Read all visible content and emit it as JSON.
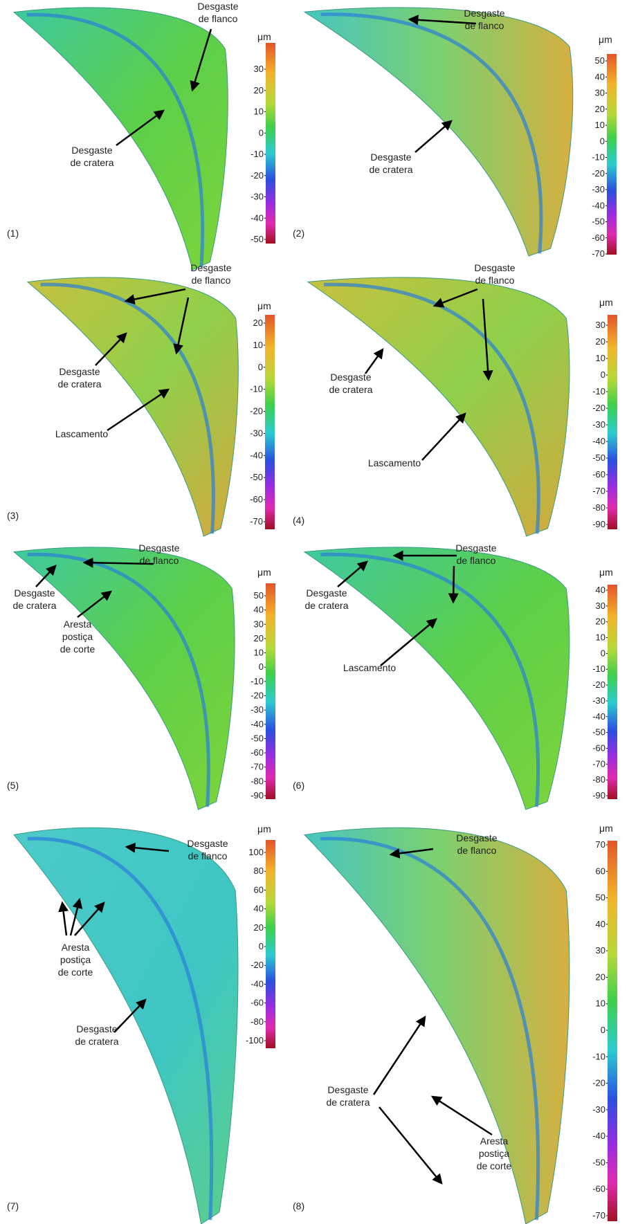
{
  "panels": [
    {
      "label": "(1)",
      "unit": "μm",
      "scale": [
        "30",
        "20",
        "10",
        "0",
        "-10",
        "-20",
        "-30",
        "-40",
        "-50"
      ],
      "annotations": [
        {
          "lines": [
            "Desgaste",
            "de flanco"
          ]
        },
        {
          "lines": [
            "Desgaste",
            "de cratera"
          ]
        }
      ]
    },
    {
      "label": "(2)",
      "unit": "μm",
      "scale": [
        "50",
        "40",
        "30",
        "20",
        "10",
        "0",
        "-10",
        "-20",
        "-30",
        "-40",
        "-50",
        "-60",
        "-70"
      ],
      "annotations": [
        {
          "lines": [
            "Desgaste",
            "de flanco"
          ]
        },
        {
          "lines": [
            "Desgaste",
            "de cratera"
          ]
        }
      ]
    },
    {
      "label": "(3)",
      "unit": "μm",
      "scale": [
        "20",
        "10",
        "0",
        "-10",
        "-20",
        "-30",
        "-40",
        "-50",
        "-60",
        "-70"
      ],
      "annotations": [
        {
          "lines": [
            "Desgaste",
            "de flanco"
          ]
        },
        {
          "lines": [
            "Desgaste",
            "de cratera"
          ]
        },
        {
          "lines": [
            "Lascamento"
          ]
        }
      ]
    },
    {
      "label": "(4)",
      "unit": "μm",
      "scale": [
        "30",
        "20",
        "10",
        "0",
        "-10",
        "-20",
        "-30",
        "-40",
        "-50",
        "-60",
        "-70",
        "-80",
        "-90"
      ],
      "annotations": [
        {
          "lines": [
            "Desgaste",
            "de flanco"
          ]
        },
        {
          "lines": [
            "Desgaste",
            "de cratera"
          ]
        },
        {
          "lines": [
            "Lascamento"
          ]
        }
      ]
    },
    {
      "label": "(5)",
      "unit": "μm",
      "scale": [
        "50",
        "40",
        "30",
        "20",
        "10",
        "0",
        "-10",
        "-20",
        "-30",
        "-40",
        "-50",
        "-60",
        "-70",
        "-80",
        "-90"
      ],
      "annotations": [
        {
          "lines": [
            "Desgaste",
            "de flanco"
          ]
        },
        {
          "lines": [
            "Desgaste",
            "de cratera"
          ]
        },
        {
          "lines": [
            "Aresta",
            "postiça",
            "de corte"
          ]
        }
      ]
    },
    {
      "label": "(6)",
      "unit": "μm",
      "scale": [
        "40",
        "30",
        "20",
        "10",
        "0",
        "-10",
        "-20",
        "-30",
        "-40",
        "-50",
        "-60",
        "-70",
        "-80",
        "-90"
      ],
      "annotations": [
        {
          "lines": [
            "Desgaste",
            "de flanco"
          ]
        },
        {
          "lines": [
            "Desgaste",
            "de cratera"
          ]
        },
        {
          "lines": [
            "Lascamento"
          ]
        }
      ]
    },
    {
      "label": "(7)",
      "unit": "μm",
      "scale": [
        "100",
        "80",
        "60",
        "40",
        "20",
        "0",
        "-20",
        "-40",
        "-60",
        "-80",
        "-100"
      ],
      "annotations": [
        {
          "lines": [
            "Desgaste",
            "de flanco"
          ]
        },
        {
          "lines": [
            "Aresta",
            "postiça",
            "de corte"
          ]
        },
        {
          "lines": [
            "Desgaste",
            "de cratera"
          ]
        }
      ]
    },
    {
      "label": "(8)",
      "unit": "μm",
      "scale": [
        "70",
        "60",
        "50",
        "40",
        "30",
        "20",
        "10",
        "0",
        "-10",
        "-20",
        "-30",
        "-40",
        "-50",
        "-60",
        "-70"
      ],
      "annotations": [
        {
          "lines": [
            "Desgaste",
            "de flanco"
          ]
        },
        {
          "lines": [
            "Desgaste",
            "de cratera"
          ]
        },
        {
          "lines": [
            "Aresta",
            "postiça",
            "de corte"
          ]
        }
      ]
    }
  ]
}
